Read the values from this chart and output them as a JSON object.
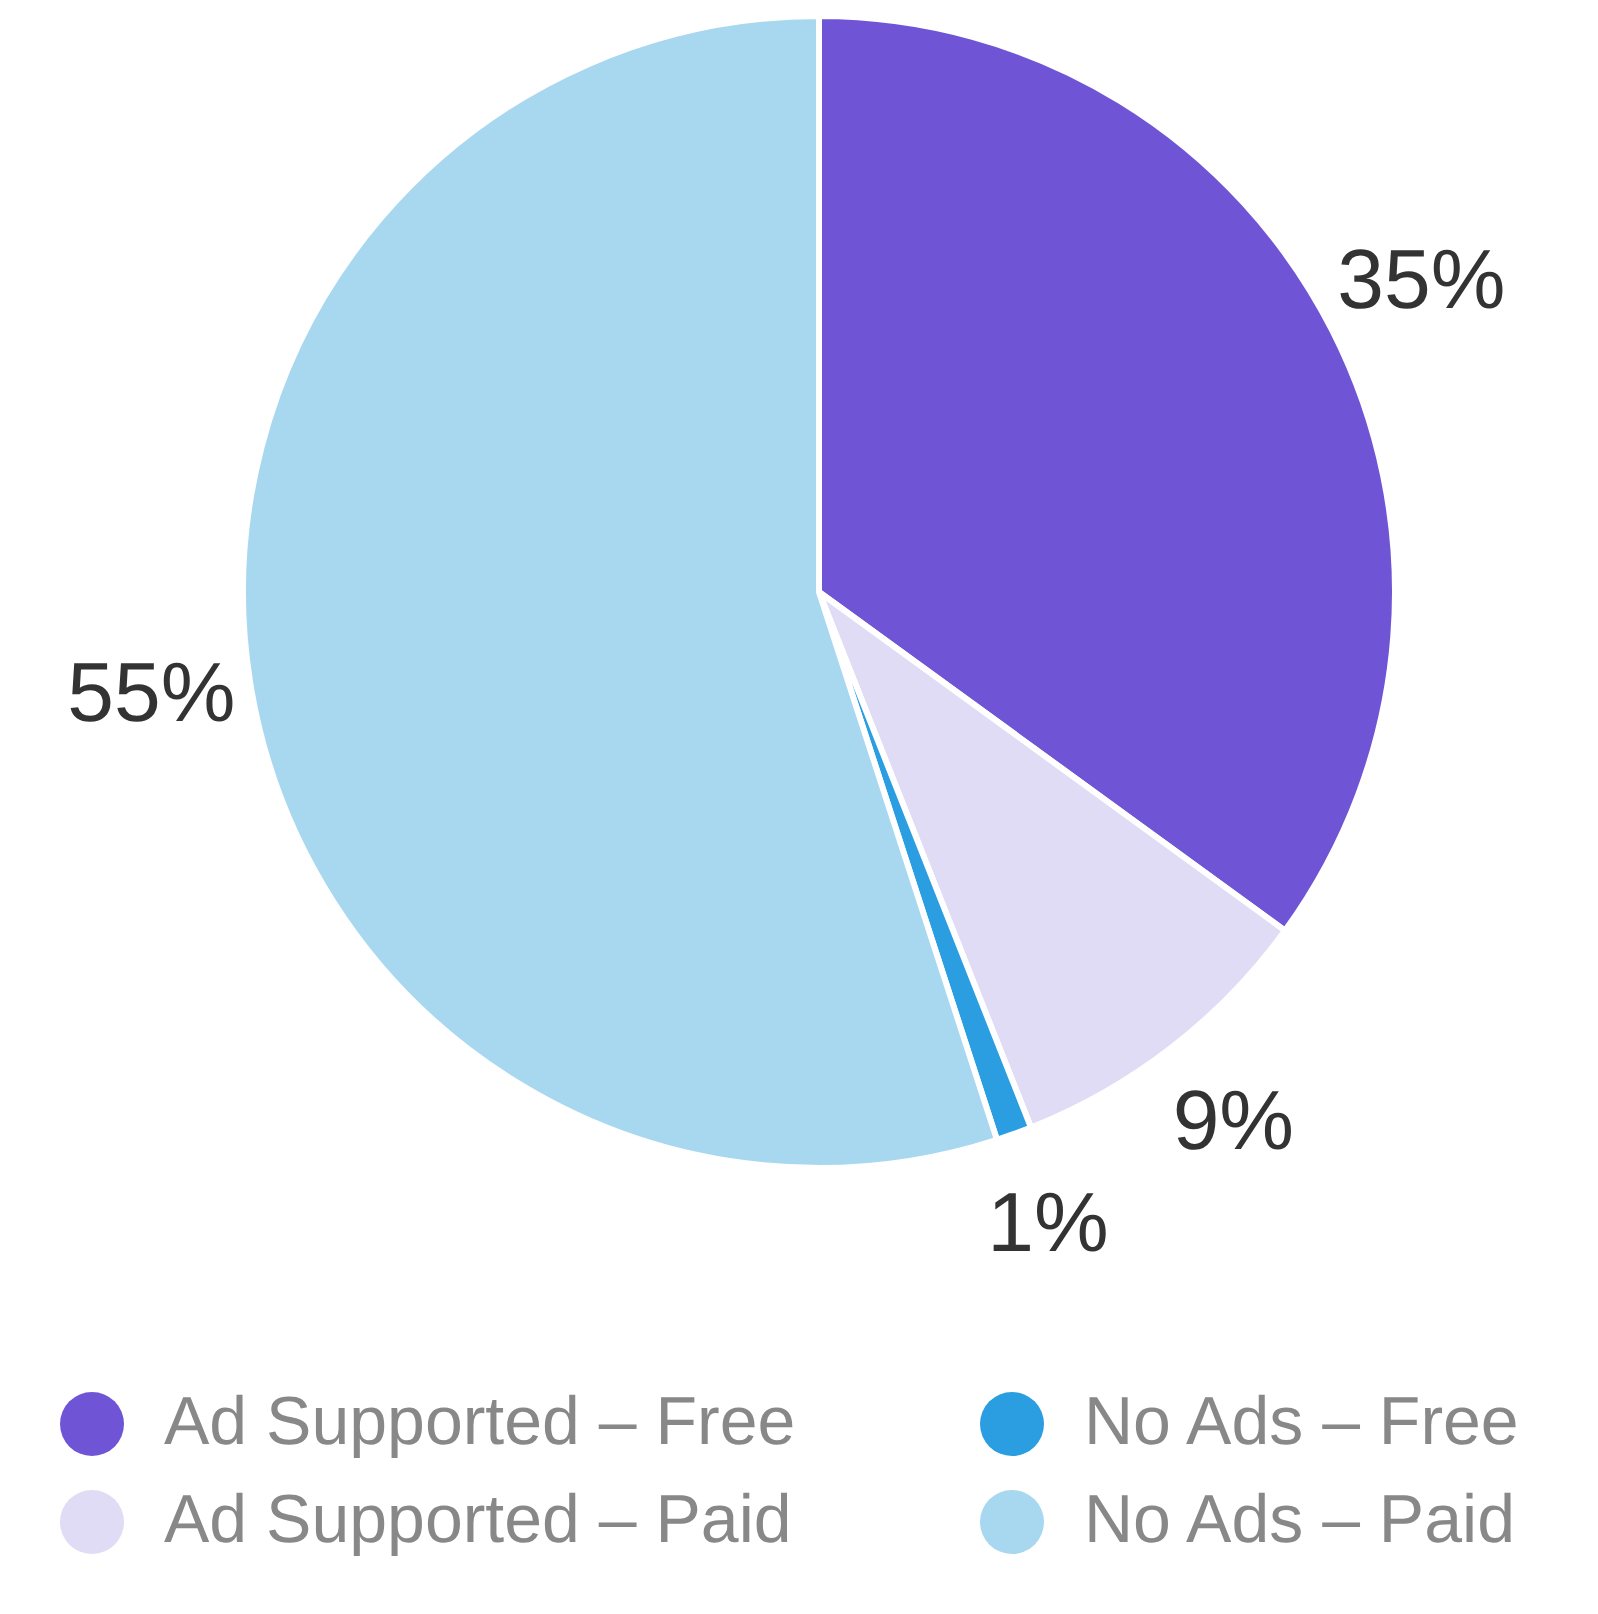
{
  "chart_data": {
    "type": "pie",
    "categories": [
      "Ad Supported – Free",
      "Ad Supported – Paid",
      "No Ads – Free",
      "No Ads – Paid"
    ],
    "values": [
      35,
      9,
      1,
      55
    ],
    "colors": [
      "#6f55d6",
      "#e0dcf5",
      "#2a9ee0",
      "#a8d8f0"
    ],
    "value_labels": [
      "35%",
      "9%",
      "1%",
      "55%"
    ],
    "legend": "bottom"
  }
}
